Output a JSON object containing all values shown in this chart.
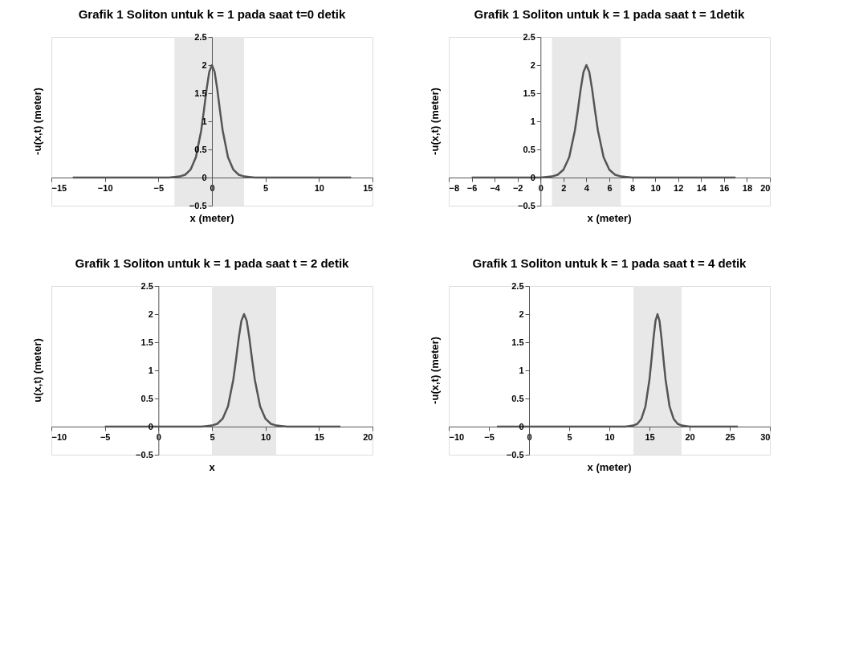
{
  "chart_data": [
    {
      "type": "line",
      "title": "Grafik 1 Soliton untuk k = 1 pada saat t=0 detik",
      "xlabel": "x (meter)",
      "ylabel": "-u(x,t) (meter)",
      "xlim": [
        -15,
        15
      ],
      "xticks": [
        -15,
        -10,
        -5,
        0,
        5,
        10,
        15
      ],
      "ylim": [
        -0.5,
        2.5
      ],
      "yticks": [
        -0.5,
        0,
        0.5,
        1,
        1.5,
        2,
        2.5
      ],
      "grid": false,
      "bands": [
        {
          "axis": "x",
          "from": -3.5,
          "to": 3,
          "color": "#e8e8e8"
        }
      ],
      "series": [
        {
          "color": "#555555",
          "x": [
            -13,
            -4,
            -3,
            -2.5,
            -2,
            -1.5,
            -1,
            -0.75,
            -0.5,
            -0.25,
            0,
            0.25,
            0.5,
            0.75,
            1,
            1.5,
            2,
            2.5,
            3,
            4,
            13
          ],
          "values": [
            0,
            0,
            0.02,
            0.05,
            0.14,
            0.36,
            0.84,
            1.19,
            1.57,
            1.88,
            2,
            1.88,
            1.57,
            1.19,
            0.84,
            0.36,
            0.14,
            0.05,
            0.02,
            0,
            0
          ]
        }
      ]
    },
    {
      "type": "line",
      "title": "Grafik 1 Soliton untuk k = 1 pada saat t = 1detik",
      "xlabel": "x (meter)",
      "ylabel": "-u(x,t) (meter)",
      "xlim": [
        -8,
        20
      ],
      "xticks": [
        -8,
        -6,
        -4,
        -2,
        0,
        2,
        4,
        6,
        8,
        10,
        12,
        14,
        16,
        18,
        20
      ],
      "ylim": [
        -0.5,
        2.5
      ],
      "yticks": [
        -0.5,
        0,
        0.5,
        1,
        1.5,
        2,
        2.5
      ],
      "grid": false,
      "bands": [
        {
          "axis": "x",
          "from": 1,
          "to": 7,
          "color": "#e8e8e8"
        }
      ],
      "series": [
        {
          "color": "#555555",
          "x": [
            -6,
            0,
            1,
            1.5,
            2,
            2.5,
            3,
            3.25,
            3.5,
            3.75,
            4,
            4.25,
            4.5,
            4.75,
            5,
            5.5,
            6,
            6.5,
            7,
            8,
            17
          ],
          "values": [
            0,
            0,
            0.02,
            0.05,
            0.14,
            0.36,
            0.84,
            1.19,
            1.57,
            1.88,
            2,
            1.88,
            1.57,
            1.19,
            0.84,
            0.36,
            0.14,
            0.05,
            0.02,
            0,
            0
          ]
        }
      ]
    },
    {
      "type": "line",
      "title": "Grafik 1 Soliton untuk k = 1 pada saat  t = 2 detik",
      "xlabel": "x",
      "ylabel": "u(x,t) (meter)",
      "xlim": [
        -10,
        20
      ],
      "xticks": [
        -10,
        -5,
        0,
        5,
        10,
        15,
        20
      ],
      "ylim": [
        -0.5,
        2.5
      ],
      "yticks": [
        -0.5,
        0,
        0.5,
        1,
        1.5,
        2,
        2.5
      ],
      "grid": false,
      "bands": [
        {
          "axis": "x",
          "from": 5,
          "to": 11,
          "color": "#e8e8e8"
        }
      ],
      "series": [
        {
          "color": "#555555",
          "x": [
            -5,
            4,
            5,
            5.5,
            6,
            6.5,
            7,
            7.25,
            7.5,
            7.75,
            8,
            8.25,
            8.5,
            8.75,
            9,
            9.5,
            10,
            10.5,
            11,
            12,
            17
          ],
          "values": [
            0,
            0,
            0.02,
            0.05,
            0.14,
            0.36,
            0.84,
            1.19,
            1.57,
            1.88,
            2,
            1.88,
            1.57,
            1.19,
            0.84,
            0.36,
            0.14,
            0.05,
            0.02,
            0,
            0
          ]
        }
      ]
    },
    {
      "type": "line",
      "title": "Grafik 1 Soliton untuk k = 1 pada saat t = 4 detik",
      "xlabel": "x (meter)",
      "ylabel": "-u(x,t) (meter)",
      "xlim": [
        -10,
        30
      ],
      "xticks": [
        -10,
        -5,
        0,
        5,
        10,
        15,
        20,
        25,
        30
      ],
      "ylim": [
        -0.5,
        2.5
      ],
      "yticks": [
        -0.5,
        0,
        0.5,
        1,
        1.5,
        2,
        2.5
      ],
      "grid": false,
      "bands": [
        {
          "axis": "x",
          "from": 13,
          "to": 19,
          "color": "#e8e8e8"
        }
      ],
      "series": [
        {
          "color": "#555555",
          "x": [
            -4,
            12,
            13,
            13.5,
            14,
            14.5,
            15,
            15.25,
            15.5,
            15.75,
            16,
            16.25,
            16.5,
            16.75,
            17,
            17.5,
            18,
            18.5,
            19,
            20,
            26
          ],
          "values": [
            0,
            0,
            0.02,
            0.05,
            0.14,
            0.36,
            0.84,
            1.19,
            1.57,
            1.88,
            2,
            1.88,
            1.57,
            1.19,
            0.84,
            0.36,
            0.14,
            0.05,
            0.02,
            0,
            0
          ]
        }
      ]
    }
  ]
}
